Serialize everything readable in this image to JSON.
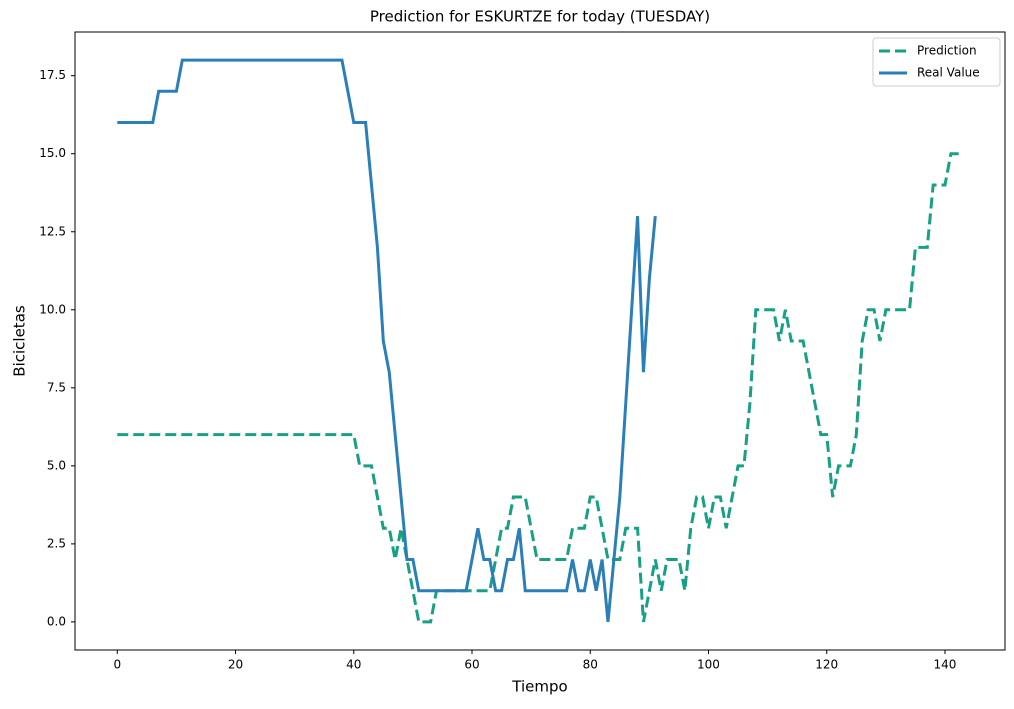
{
  "chart_data": {
    "type": "line",
    "title": "Prediction for ESKURTZE for today (TUESDAY)",
    "xlabel": "Tiempo",
    "ylabel": "Bicicletas",
    "x": [
      0,
      1,
      2,
      3,
      4,
      5,
      6,
      7,
      8,
      9,
      10,
      11,
      12,
      13,
      14,
      15,
      16,
      17,
      18,
      19,
      20,
      21,
      22,
      23,
      24,
      25,
      26,
      27,
      28,
      29,
      30,
      31,
      32,
      33,
      34,
      35,
      36,
      37,
      38,
      39,
      40,
      41,
      42,
      43,
      44,
      45,
      46,
      47,
      48,
      49,
      50,
      51,
      52,
      53,
      54,
      55,
      56,
      57,
      58,
      59,
      60,
      61,
      62,
      63,
      64,
      65,
      66,
      67,
      68,
      69,
      70,
      71,
      72,
      73,
      74,
      75,
      76,
      77,
      78,
      79,
      80,
      81,
      82,
      83,
      84,
      85,
      86,
      87,
      88,
      89,
      90,
      91,
      92,
      93,
      94,
      95,
      96,
      97,
      98,
      99,
      100,
      101,
      102,
      103,
      104,
      105,
      106,
      107,
      108,
      109,
      110,
      111,
      112,
      113,
      114,
      115,
      116,
      117,
      118,
      119,
      120,
      121,
      122,
      123,
      124,
      125,
      126,
      127,
      128,
      129,
      130,
      131,
      132,
      133,
      134,
      135,
      136,
      137,
      138,
      139,
      140,
      141,
      142,
      143
    ],
    "series": [
      {
        "name": "Prediction",
        "color": "#17a085",
        "dashed": true,
        "values": [
          6,
          6,
          6,
          6,
          6,
          6,
          6,
          6,
          6,
          6,
          6,
          6,
          6,
          6,
          6,
          6,
          6,
          6,
          6,
          6,
          6,
          6,
          6,
          6,
          6,
          6,
          6,
          6,
          6,
          6,
          6,
          6,
          6,
          6,
          6,
          6,
          6,
          6,
          6,
          6,
          6,
          5,
          5,
          5,
          4,
          3,
          3,
          2,
          3,
          2,
          1,
          0,
          0,
          0,
          1,
          1,
          1,
          1,
          1,
          1,
          1,
          1,
          1,
          1,
          2,
          3,
          3,
          4,
          4,
          4,
          3,
          2,
          2,
          2,
          2,
          2,
          2,
          3,
          3,
          3,
          4,
          4,
          3,
          2,
          2,
          2,
          3,
          3,
          3,
          0,
          1,
          2,
          1,
          2,
          2,
          2,
          1,
          3,
          4,
          4,
          3,
          4,
          4,
          3,
          4,
          5,
          5,
          7,
          10,
          10,
          10,
          10,
          9,
          10,
          9,
          9,
          9,
          8,
          7,
          6,
          6,
          4,
          5,
          5,
          5,
          6,
          9,
          10,
          10,
          9,
          10,
          10,
          10,
          10,
          10,
          12,
          12,
          12,
          14,
          14,
          14,
          15,
          15,
          15
        ]
      },
      {
        "name": "Real Value",
        "color": "#2a7fb8",
        "dashed": false,
        "values": [
          16,
          16,
          16,
          16,
          16,
          16,
          16,
          17,
          17,
          17,
          17,
          18,
          18,
          18,
          18,
          18,
          18,
          18,
          18,
          18,
          18,
          18,
          18,
          18,
          18,
          18,
          18,
          18,
          18,
          18,
          18,
          18,
          18,
          18,
          18,
          18,
          18,
          18,
          18,
          17,
          16,
          16,
          16,
          14,
          12,
          9,
          8,
          6,
          4,
          2,
          2,
          1,
          1,
          1,
          1,
          1,
          1,
          1,
          1,
          1,
          2,
          3,
          2,
          2,
          1,
          1,
          2,
          2,
          3,
          1,
          1,
          1,
          1,
          1,
          1,
          1,
          1,
          2,
          1,
          1,
          2,
          1,
          2,
          0,
          2,
          4,
          7,
          10,
          13,
          8,
          11,
          13,
          null,
          null,
          null,
          null,
          null,
          null,
          null,
          null,
          null,
          null,
          null,
          null,
          null,
          null,
          null,
          null,
          null,
          null,
          null,
          null,
          null,
          null,
          null,
          null,
          null,
          null,
          null,
          null,
          null,
          null,
          null,
          null,
          null,
          null,
          null,
          null,
          null,
          null,
          null,
          null,
          null,
          null,
          null,
          null,
          null,
          null,
          null,
          null,
          null,
          null,
          null,
          null
        ]
      }
    ],
    "xlim": [
      -7.15,
      150.15
    ],
    "ylim": [
      -0.9,
      18.9
    ],
    "xticks": [
      0,
      20,
      40,
      60,
      80,
      100,
      120,
      140
    ],
    "yticks": [
      {
        "value": 0,
        "label": "0.0"
      },
      2.5,
      {
        "value": 5,
        "label": "5.0"
      },
      7.5,
      {
        "value": 10,
        "label": "10.0"
      },
      12.5,
      {
        "value": 15,
        "label": "15.0"
      },
      17.5
    ],
    "legend": "upper right"
  }
}
